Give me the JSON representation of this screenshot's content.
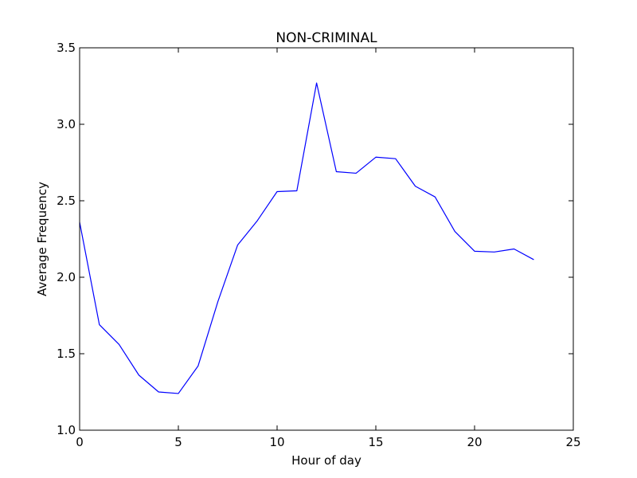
{
  "chart_data": {
    "type": "line",
    "title": "NON-CRIMINAL",
    "xlabel": "Hour of day",
    "ylabel": "Average Frequency",
    "xlim": [
      0,
      25
    ],
    "ylim": [
      1.0,
      3.5
    ],
    "xticks": [
      0,
      5,
      10,
      15,
      20,
      25
    ],
    "xtick_labels": [
      "0",
      "5",
      "10",
      "15",
      "20",
      "25"
    ],
    "yticks": [
      1.0,
      1.5,
      2.0,
      2.5,
      3.0,
      3.5
    ],
    "ytick_labels": [
      "1.0",
      "1.5",
      "2.0",
      "2.5",
      "3.0",
      "3.5"
    ],
    "grid": false,
    "series": [
      {
        "color": "#0000ff",
        "x": [
          0,
          1,
          2,
          3,
          4,
          5,
          6,
          7,
          8,
          9,
          10,
          11,
          12,
          13,
          14,
          15,
          16,
          17,
          18,
          19,
          20,
          21,
          22,
          23
        ],
        "y": [
          2.36,
          1.69,
          1.56,
          1.36,
          1.25,
          1.24,
          1.42,
          1.84,
          2.21,
          2.37,
          2.56,
          2.565,
          3.27,
          2.69,
          2.68,
          2.785,
          2.775,
          2.595,
          2.525,
          2.3,
          2.17,
          2.165,
          2.185,
          2.115
        ]
      }
    ]
  }
}
